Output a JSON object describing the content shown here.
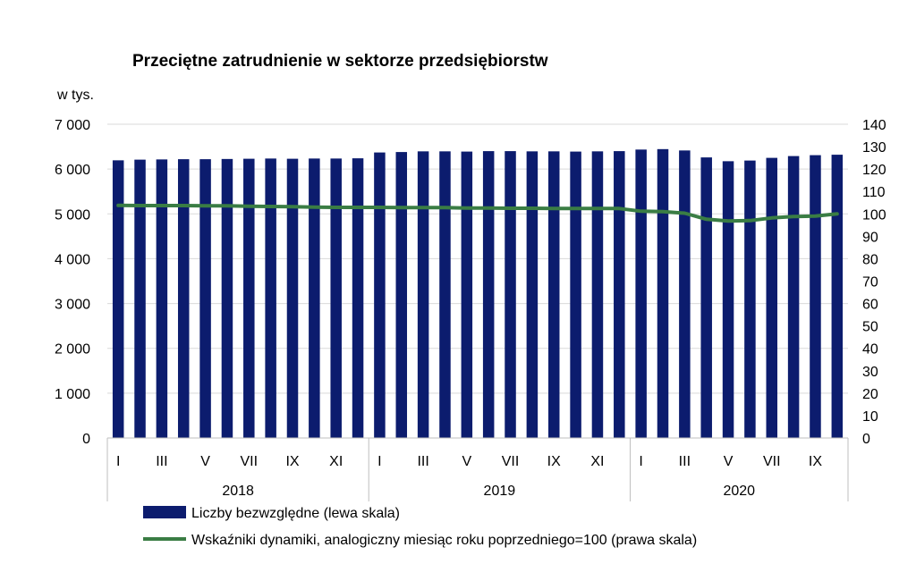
{
  "chart_data": {
    "type": "bar",
    "title": "Przeciętne zatrudnienie w sektorze przedsiębiorstw",
    "ylabel": "w tys.",
    "ylim": [
      0,
      7000
    ],
    "y2lim": [
      0,
      140
    ],
    "yticks": [
      "0",
      "1 000",
      "2 000",
      "3 000",
      "4 000",
      "5 000",
      "6 000",
      "7 000"
    ],
    "y2ticks": [
      "0",
      "10",
      "20",
      "30",
      "40",
      "50",
      "60",
      "70",
      "80",
      "90",
      "100",
      "110",
      "120",
      "130",
      "140"
    ],
    "grid": true,
    "legend_position": "bottom",
    "years": [
      "2018",
      "2019",
      "2020"
    ],
    "categories": [
      "I",
      "II",
      "III",
      "IV",
      "V",
      "VI",
      "VII",
      "VIII",
      "IX",
      "X",
      "XI",
      "XII",
      "I",
      "II",
      "III",
      "IV",
      "V",
      "VI",
      "VII",
      "VIII",
      "IX",
      "X",
      "XI",
      "XII",
      "I",
      "II",
      "III",
      "IV",
      "V",
      "VI",
      "VII",
      "VIII",
      "IX",
      "X"
    ],
    "shown_month_labels": [
      "I",
      "III",
      "V",
      "VII",
      "IX",
      "XI"
    ],
    "series": [
      {
        "name": "Liczby bezwzględne (lewa skala)",
        "type": "bar",
        "axis": "left",
        "color": "#0c1c6e",
        "values": [
          6195,
          6210,
          6215,
          6220,
          6220,
          6225,
          6230,
          6235,
          6230,
          6235,
          6235,
          6240,
          6370,
          6380,
          6395,
          6395,
          6390,
          6400,
          6400,
          6395,
          6395,
          6390,
          6395,
          6400,
          6435,
          6445,
          6415,
          6260,
          6175,
          6190,
          6250,
          6290,
          6310,
          6320
        ]
      },
      {
        "name": "Wskaźniki dynamiki, analogiczny miesiąc roku poprzedniego=100 (prawa skala)",
        "type": "line",
        "axis": "right",
        "color": "#3a7d44",
        "values": [
          103.8,
          103.7,
          103.7,
          103.7,
          103.6,
          103.6,
          103.4,
          103.3,
          103.2,
          103.0,
          102.9,
          102.9,
          102.9,
          102.8,
          102.8,
          102.8,
          102.6,
          102.6,
          102.5,
          102.5,
          102.4,
          102.4,
          102.4,
          102.4,
          101.2,
          101.0,
          100.3,
          97.6,
          96.8,
          97.0,
          98.2,
          98.8,
          99.0,
          100.0
        ]
      }
    ]
  }
}
